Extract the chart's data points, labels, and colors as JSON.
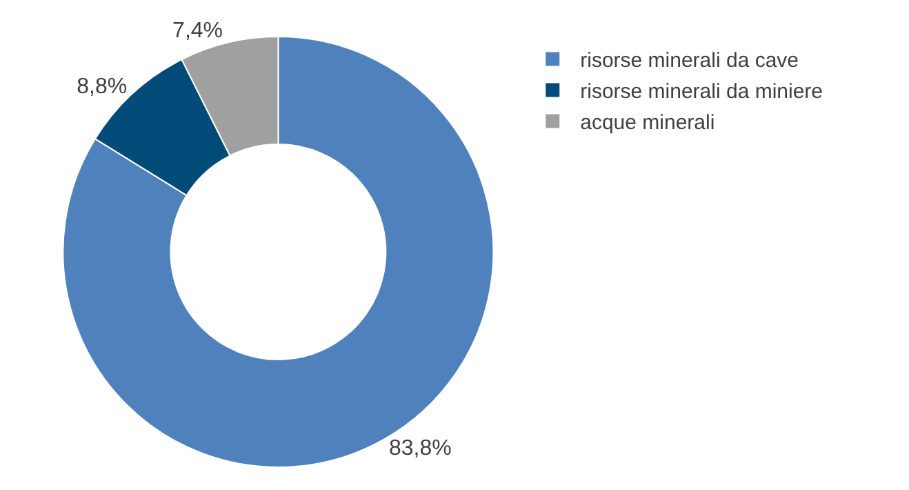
{
  "chart_data": {
    "type": "donut",
    "categories": [
      "risorse minerali da cave",
      "risorse minerali da miniere",
      "acque minerali"
    ],
    "values": [
      83.8,
      8.8,
      7.4
    ],
    "value_labels": [
      "83,8%",
      "8,8%",
      "7,4%"
    ],
    "colors": [
      "#4f81bd",
      "#004b78",
      "#a0a0a0"
    ],
    "legend": "top right"
  }
}
